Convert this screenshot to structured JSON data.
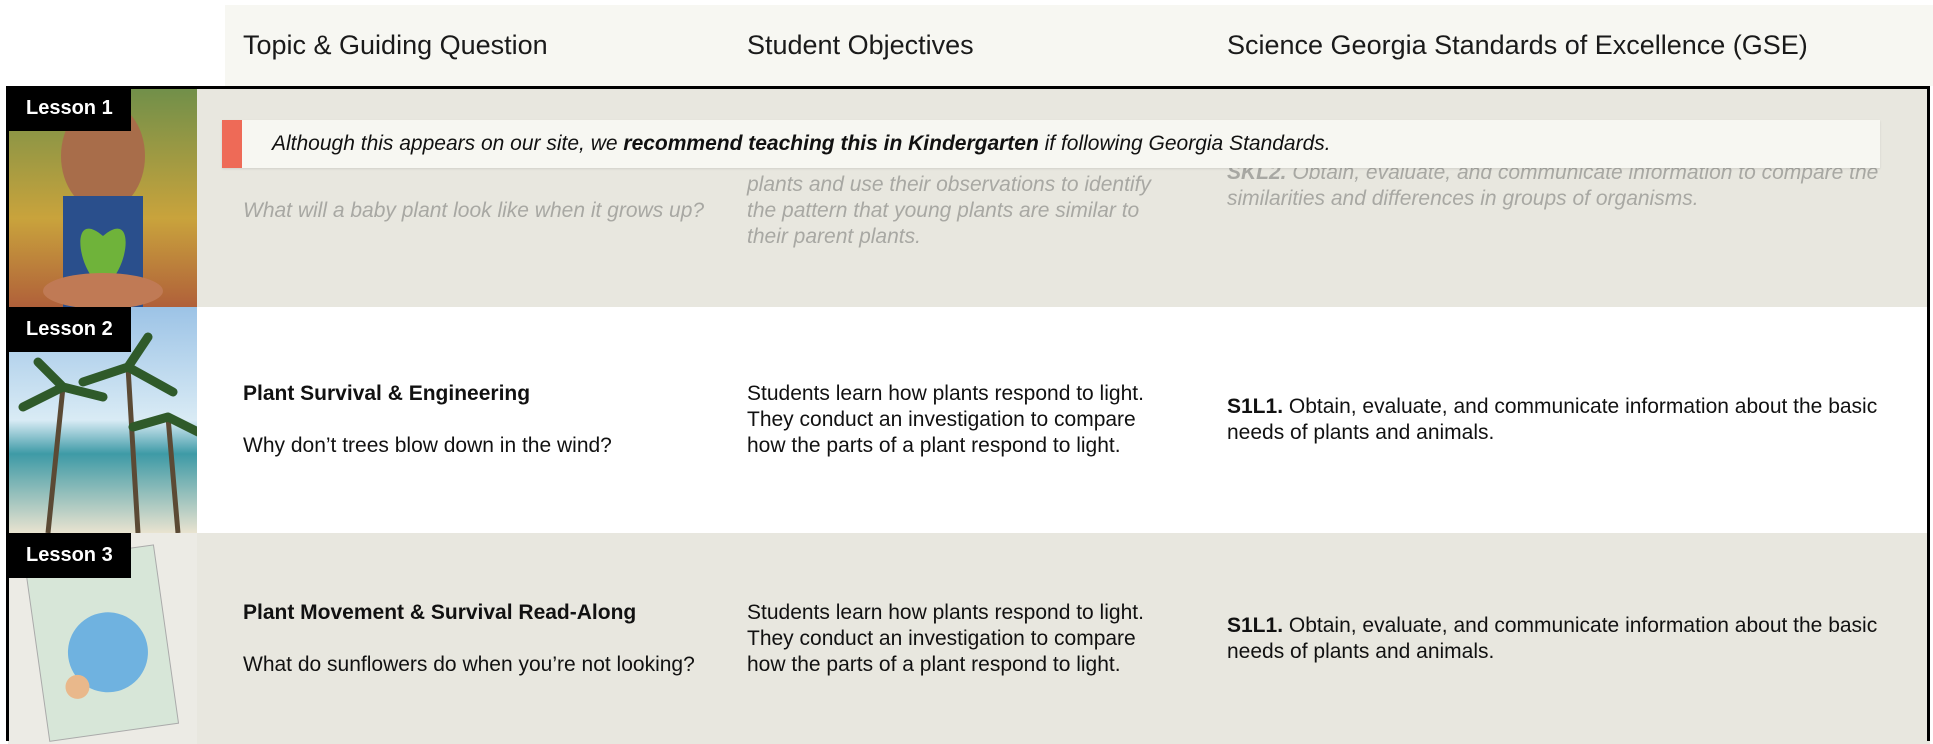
{
  "header": {
    "columns": [
      "Topic & Guiding Question",
      "Student Objectives",
      "Science Georgia Standards of Excellence (GSE)"
    ]
  },
  "notice": {
    "before": "Although this appears on our site, we ",
    "bold": "recommend teaching this in Kindergarten",
    "after": " if following Georgia Standards."
  },
  "lessons": [
    {
      "label": "Lesson 1",
      "question": "What will a baby plant look like when it grows up?",
      "objectives": "plants and use their observations to identify the pattern that young plants are similar to their parent plants.",
      "standard": {
        "code": "SKL2.",
        "text": "Obtain, evaluate, and communicate information to compare the similarities and differences in groups of organisms."
      }
    },
    {
      "label": "Lesson 2",
      "topic": "Plant Survival & Engineering",
      "question": "Why don’t trees blow down in the wind?",
      "objectives": "Students learn how plants respond to light. They conduct an investigation to compare how the parts of a plant respond to light.",
      "standard": {
        "code": "S1L1.",
        "text": "Obtain, evaluate, and communicate information about the basic needs of plants and animals."
      }
    },
    {
      "label": "Lesson 3",
      "topic": "Plant Movement & Survival Read-Along",
      "question": "What do sunflowers do when you’re not looking?",
      "objectives": "Students learn how plants respond to light. They conduct an investigation to compare how the parts of a plant respond to light.",
      "standard": {
        "code": "S1L1.",
        "text": "Obtain, evaluate, and communicate information about the basic needs of plants and animals."
      }
    }
  ]
}
